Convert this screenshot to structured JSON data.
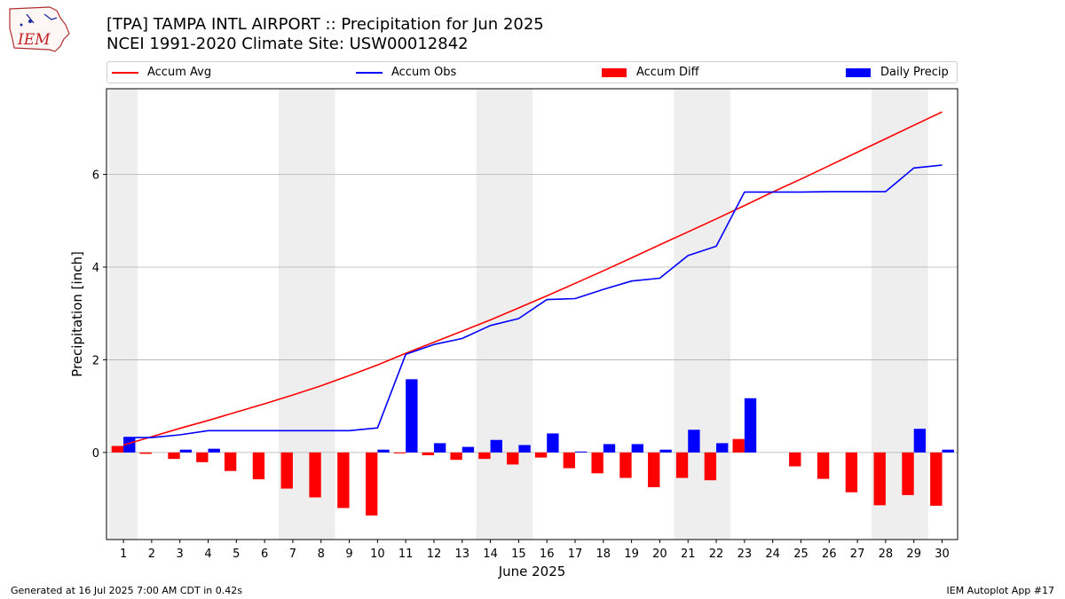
{
  "header": {
    "title_line1": "[TPA] TAMPA INTL AIRPORT :: Precipitation for Jun 2025",
    "title_line2": "NCEI 1991-2020 Climate Site: USW00012842",
    "logo_text": "IEM"
  },
  "footer": {
    "generated": "Generated at 16 Jul 2025 7:00 AM CDT in 0.42s",
    "app": "IEM Autoplot App #17"
  },
  "colors": {
    "accum_avg": "#ff0000",
    "accum_obs": "#0000ff",
    "accum_diff": "#ff0000",
    "daily_precip": "#0000ff",
    "weekend_shade": "#eeeeee"
  },
  "chart_data": {
    "type": "bar",
    "xlabel": "June 2025",
    "ylabel": "Precipitation [inch]",
    "ylim": [
      -1.88,
      7.85
    ],
    "yticks": [
      0,
      2,
      4,
      6
    ],
    "grid": "horizontal",
    "legend_position": "top",
    "x": [
      1,
      2,
      3,
      4,
      5,
      6,
      7,
      8,
      9,
      10,
      11,
      12,
      13,
      14,
      15,
      16,
      17,
      18,
      19,
      20,
      21,
      22,
      23,
      24,
      25,
      26,
      27,
      28,
      29,
      30
    ],
    "weekend_shading": [
      [
        1,
        1
      ],
      [
        7,
        8
      ],
      [
        14,
        15
      ],
      [
        21,
        22
      ],
      [
        28,
        29
      ]
    ],
    "series": [
      {
        "name": "Accum Avg",
        "kind": "line",
        "values": [
          0.16,
          0.34,
          0.52,
          0.69,
          0.87,
          1.05,
          1.24,
          1.44,
          1.66,
          1.89,
          2.14,
          2.38,
          2.62,
          2.86,
          3.12,
          3.38,
          3.65,
          3.92,
          4.2,
          4.48,
          4.76,
          5.04,
          5.33,
          5.62,
          5.9,
          6.19,
          6.48,
          6.77,
          7.06,
          7.35
        ]
      },
      {
        "name": "Accum Obs",
        "kind": "line",
        "values": [
          0.32,
          0.32,
          0.38,
          0.47,
          0.47,
          0.47,
          0.47,
          0.47,
          0.47,
          0.53,
          2.12,
          2.33,
          2.46,
          2.74,
          2.89,
          3.3,
          3.32,
          3.52,
          3.7,
          3.76,
          4.25,
          4.45,
          5.62,
          5.62,
          5.62,
          5.63,
          5.63,
          5.63,
          6.14,
          6.2
        ]
      },
      {
        "name": "Accum Diff",
        "kind": "bar",
        "values": [
          0.14,
          -0.03,
          -0.14,
          -0.21,
          -0.4,
          -0.58,
          -0.78,
          -0.97,
          -1.2,
          -1.36,
          -0.02,
          -0.06,
          -0.16,
          -0.14,
          -0.26,
          -0.11,
          -0.34,
          -0.45,
          -0.55,
          -0.75,
          -0.55,
          -0.6,
          0.29,
          0.0,
          -0.3,
          -0.57,
          -0.86,
          -1.14,
          -0.92,
          -1.15
        ]
      },
      {
        "name": "Daily Precip",
        "kind": "bar",
        "values": [
          0.32,
          0.0,
          0.06,
          0.08,
          0.0,
          0.0,
          0.0,
          0.0,
          0.0,
          0.06,
          1.58,
          0.2,
          0.12,
          0.27,
          0.16,
          0.41,
          0.02,
          0.18,
          0.18,
          0.06,
          0.49,
          0.2,
          1.17,
          0.0,
          0.0,
          0.0,
          0.0,
          0.0,
          0.51,
          0.06
        ]
      }
    ]
  }
}
